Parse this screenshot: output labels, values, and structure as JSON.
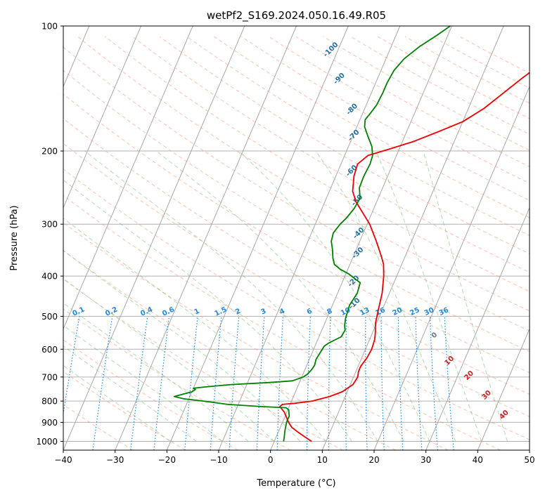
{
  "chart_data": {
    "type": "line",
    "title": "wetPf2_S169.2024.050.16.49.R05",
    "xlabel": "Temperature (°C)",
    "ylabel": "Pressure (hPa)",
    "xlim": [
      -40,
      50
    ],
    "ylim": [
      1050,
      100
    ],
    "y_scale": "log",
    "x_ticks": [
      -40,
      -30,
      -20,
      -10,
      0,
      10,
      20,
      30,
      40,
      50
    ],
    "y_ticks": [
      100,
      200,
      300,
      400,
      500,
      600,
      700,
      800,
      900,
      1000
    ],
    "grid": true,
    "colors": {
      "temperature": "#ee0000",
      "dewpoint": "#008000",
      "dry_adiabat": "#ff8a65",
      "moist_adiabat": "#66bb66",
      "mixing_ratio": "#1e88e5",
      "isotherm": "#999999",
      "dry_label": "#2471a3",
      "moist_label": "#cc2222"
    },
    "dry_adiabat_labels": [
      "-100",
      "-90",
      "-80",
      "-70",
      "-60",
      "-50",
      "-40",
      "-30",
      "-20",
      "-10"
    ],
    "mixing_ratio_labels": [
      "0.1",
      "0.2",
      "0.4",
      "0.6",
      "1",
      "1.5",
      "2",
      "3",
      "4",
      "6",
      "8",
      "10",
      "13",
      "16",
      "20",
      "25",
      "30",
      "36"
    ],
    "moist_adiabat_labels": [
      "0",
      "10",
      "20",
      "30",
      "40"
    ],
    "series": [
      {
        "key": "temperature",
        "points": [
          [
            7.2,
            1000
          ],
          [
            5.5,
            975
          ],
          [
            3.8,
            950
          ],
          [
            2.2,
            925
          ],
          [
            1.2,
            900
          ],
          [
            -0.5,
            850
          ],
          [
            -1.8,
            825
          ],
          [
            -1.5,
            815
          ],
          [
            0.8,
            810
          ],
          [
            4,
            800
          ],
          [
            7,
            780
          ],
          [
            9,
            760
          ],
          [
            10.5,
            730
          ],
          [
            10.8,
            700
          ],
          [
            10.5,
            680
          ],
          [
            10.5,
            660
          ],
          [
            11,
            630
          ],
          [
            11.2,
            600
          ],
          [
            11,
            570
          ],
          [
            10.6,
            550
          ],
          [
            9.8,
            520
          ],
          [
            9.2,
            480
          ],
          [
            8.6,
            440
          ],
          [
            7.5,
            400
          ],
          [
            6.5,
            375
          ],
          [
            5.5,
            360
          ],
          [
            3.2,
            330
          ],
          [
            0.5,
            300
          ],
          [
            -2,
            280
          ],
          [
            -4,
            265
          ],
          [
            -5.5,
            250
          ],
          [
            -6.5,
            230
          ],
          [
            -6.8,
            215
          ],
          [
            -5.5,
            205
          ],
          [
            -2,
            198
          ],
          [
            2,
            190
          ],
          [
            6,
            180
          ],
          [
            10,
            170
          ],
          [
            13,
            158
          ],
          [
            15.5,
            145
          ],
          [
            18,
            133
          ],
          [
            20,
            125
          ],
          [
            22,
            117
          ],
          [
            23.5,
            110
          ],
          [
            24.5,
            104
          ],
          [
            25.2,
            100
          ]
        ]
      },
      {
        "key": "dewpoint",
        "points": [
          [
            1.8,
            1000
          ],
          [
            1.5,
            970
          ],
          [
            1.2,
            945
          ],
          [
            0.8,
            900
          ],
          [
            0.8,
            870
          ],
          [
            0.2,
            840
          ],
          [
            -0.5,
            830
          ],
          [
            -5,
            825
          ],
          [
            -12,
            815
          ],
          [
            -17,
            800
          ],
          [
            -21,
            790
          ],
          [
            -23,
            780
          ],
          [
            -21.5,
            770
          ],
          [
            -20,
            760
          ],
          [
            -19.5,
            750
          ],
          [
            -20,
            745
          ],
          [
            -18,
            740
          ],
          [
            -13,
            730
          ],
          [
            -6,
            722
          ],
          [
            -1.5,
            715
          ],
          [
            0.3,
            700
          ],
          [
            0.8,
            690
          ],
          [
            1.3,
            672
          ],
          [
            1.5,
            655
          ],
          [
            1.3,
            635
          ],
          [
            1.5,
            615
          ],
          [
            1.8,
            590
          ],
          [
            2.4,
            580
          ],
          [
            4.3,
            560
          ],
          [
            4.5,
            540
          ],
          [
            4,
            525
          ],
          [
            3.6,
            505
          ],
          [
            3.3,
            470
          ],
          [
            3.8,
            440
          ],
          [
            3.5,
            415
          ],
          [
            0.5,
            395
          ],
          [
            -1.5,
            385
          ],
          [
            -3,
            375
          ],
          [
            -3.8,
            362
          ],
          [
            -4.6,
            345
          ],
          [
            -5.5,
            330
          ],
          [
            -5.8,
            315
          ],
          [
            -5.2,
            300
          ],
          [
            -4.5,
            290
          ],
          [
            -3.8,
            275
          ],
          [
            -3.5,
            260
          ],
          [
            -4.5,
            245
          ],
          [
            -4.6,
            230
          ],
          [
            -4.4,
            215
          ],
          [
            -4.6,
            205
          ],
          [
            -5.5,
            195
          ],
          [
            -7,
            185
          ],
          [
            -8.5,
            175
          ],
          [
            -9,
            168
          ],
          [
            -8.5,
            162
          ],
          [
            -8,
            155
          ],
          [
            -7.8,
            145
          ],
          [
            -7.8,
            137
          ],
          [
            -7.5,
            128
          ],
          [
            -6.5,
            120
          ],
          [
            -4.5,
            112
          ],
          [
            -2,
            105
          ],
          [
            -0.3,
            100
          ]
        ]
      }
    ]
  }
}
